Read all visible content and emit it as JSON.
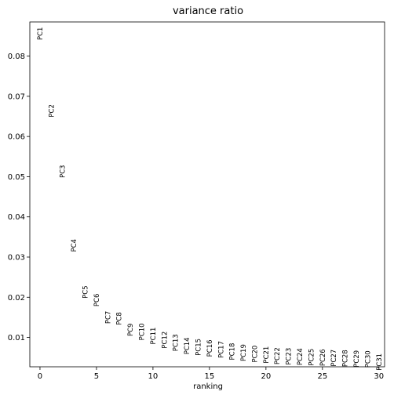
{
  "chart_data": {
    "type": "scatter",
    "title": "variance ratio",
    "xlabel": "ranking",
    "ylabel": "",
    "xlim": [
      -0.9,
      30.5
    ],
    "ylim": [
      0.0027,
      0.0885
    ],
    "xticks": [
      0,
      5,
      10,
      15,
      20,
      25,
      30
    ],
    "xtick_labels": [
      "0",
      "5",
      "10",
      "15",
      "20",
      "25",
      "30"
    ],
    "yticks": [
      0.01,
      0.02,
      0.03,
      0.04,
      0.05,
      0.06,
      0.07,
      0.08
    ],
    "ytick_labels": [
      "0.01",
      "0.02",
      "0.03",
      "0.04",
      "0.05",
      "0.06",
      "0.07",
      "0.08"
    ],
    "grid": false,
    "legend": false,
    "marker": "text-label",
    "points": [
      {
        "x": 0,
        "y": 0.0856,
        "label": "PC1"
      },
      {
        "x": 1,
        "y": 0.0664,
        "label": "PC2"
      },
      {
        "x": 2,
        "y": 0.0513,
        "label": "PC3"
      },
      {
        "x": 3,
        "y": 0.0329,
        "label": "PC4"
      },
      {
        "x": 4,
        "y": 0.0213,
        "label": "PC5"
      },
      {
        "x": 5,
        "y": 0.0193,
        "label": "PC6"
      },
      {
        "x": 6,
        "y": 0.015,
        "label": "PC7"
      },
      {
        "x": 7,
        "y": 0.0147,
        "label": "PC8"
      },
      {
        "x": 8,
        "y": 0.0119,
        "label": "PC9"
      },
      {
        "x": 9,
        "y": 0.0114,
        "label": "PC10"
      },
      {
        "x": 10,
        "y": 0.0104,
        "label": "PC11"
      },
      {
        "x": 11,
        "y": 0.0094,
        "label": "PC12"
      },
      {
        "x": 12,
        "y": 0.0087,
        "label": "PC13"
      },
      {
        "x": 13,
        "y": 0.0079,
        "label": "PC14"
      },
      {
        "x": 14,
        "y": 0.0076,
        "label": "PC15"
      },
      {
        "x": 15,
        "y": 0.0073,
        "label": "PC16"
      },
      {
        "x": 16,
        "y": 0.007,
        "label": "PC17"
      },
      {
        "x": 17,
        "y": 0.0065,
        "label": "PC18"
      },
      {
        "x": 18,
        "y": 0.0062,
        "label": "PC19"
      },
      {
        "x": 19,
        "y": 0.0059,
        "label": "PC20"
      },
      {
        "x": 20,
        "y": 0.0057,
        "label": "PC21"
      },
      {
        "x": 21,
        "y": 0.0054,
        "label": "PC22"
      },
      {
        "x": 22,
        "y": 0.0053,
        "label": "PC23"
      },
      {
        "x": 23,
        "y": 0.0052,
        "label": "PC24"
      },
      {
        "x": 24,
        "y": 0.0051,
        "label": "PC25"
      },
      {
        "x": 25,
        "y": 0.005,
        "label": "PC26"
      },
      {
        "x": 26,
        "y": 0.0049,
        "label": "PC27"
      },
      {
        "x": 27,
        "y": 0.0048,
        "label": "PC28"
      },
      {
        "x": 28,
        "y": 0.0047,
        "label": "PC29"
      },
      {
        "x": 29,
        "y": 0.0046,
        "label": "PC30"
      },
      {
        "x": 30,
        "y": 0.0039,
        "label": "PC31"
      }
    ]
  }
}
